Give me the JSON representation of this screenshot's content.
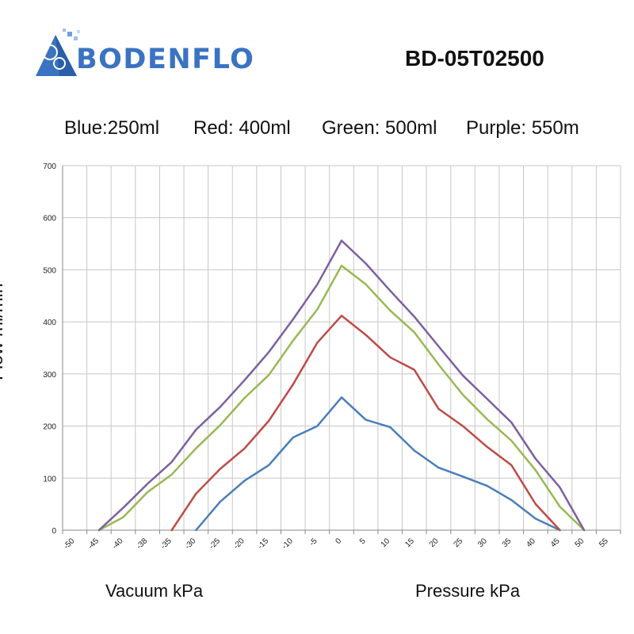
{
  "brand": {
    "name": "BODENFLO",
    "model": "BD-05T02500"
  },
  "legend_note": [
    "Blue:250ml",
    "Red: 400ml",
    "Green: 500ml",
    "Purple: 550m"
  ],
  "colors": {
    "blue": "#4a7ebb",
    "red": "#be4b48",
    "green": "#98b954",
    "purple": "#7d60a0",
    "grid": "#c7c7c7",
    "brand": "#3a73c2"
  },
  "bottom_labels": {
    "vacuum": "Vacuum kPa",
    "pressure": "Pressure kPa"
  },
  "chart_data": {
    "type": "line",
    "ylabel": "Flow ml/min",
    "ylim": [
      0,
      700
    ],
    "yticks": [
      0,
      100,
      200,
      300,
      400,
      500,
      600,
      700
    ],
    "x_categories": [
      "-50",
      "-45",
      "-40",
      "-38",
      "-35",
      "-30",
      "-25",
      "-20",
      "-15",
      "-10",
      "-5",
      "0",
      "5",
      "10",
      "15",
      "20",
      "25",
      "30",
      "35",
      "40",
      "45",
      "50",
      "55"
    ],
    "grid": true,
    "series": [
      {
        "color": "#4a7ebb",
        "start_index": 5,
        "values": [
          0,
          55,
          95,
          125,
          178,
          200,
          255,
          212,
          198,
          153,
          120,
          103,
          85,
          58,
          22,
          0
        ]
      },
      {
        "color": "#be4b48",
        "start_index": 4,
        "values": [
          0,
          70,
          118,
          157,
          210,
          280,
          360,
          412,
          375,
          332,
          308,
          233,
          200,
          160,
          125,
          50,
          0
        ]
      },
      {
        "color": "#98b954",
        "start_index": 1,
        "values": [
          0,
          25,
          73,
          107,
          157,
          202,
          254,
          298,
          364,
          424,
          508,
          472,
          422,
          380,
          318,
          260,
          213,
          172,
          115,
          45,
          0
        ]
      },
      {
        "color": "#7d60a0",
        "start_index": 1,
        "values": [
          0,
          43,
          89,
          131,
          193,
          237,
          288,
          342,
          405,
          472,
          556,
          512,
          460,
          410,
          353,
          297,
          252,
          207,
          137,
          82,
          0
        ]
      }
    ]
  }
}
